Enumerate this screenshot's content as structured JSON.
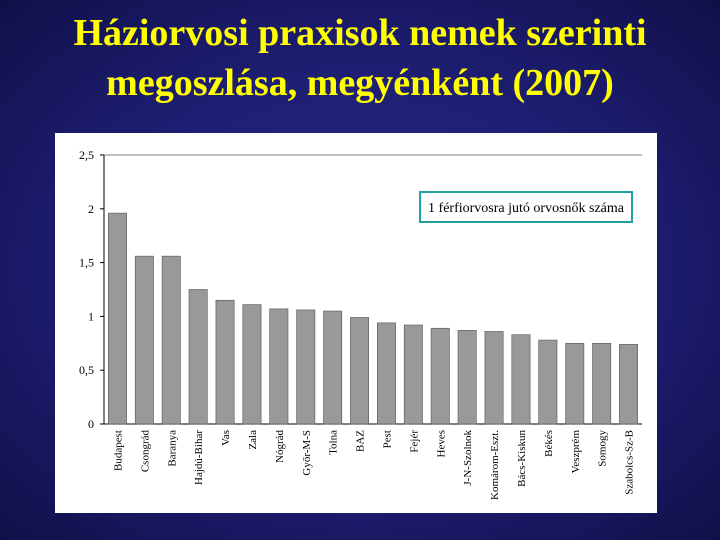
{
  "chart_data": {
    "type": "bar",
    "title": "Háziorvosi praxisok nemek szerinti megoszlása, megyénként (2007)",
    "categories": [
      "Budapest",
      "Csongrád",
      "Baranya",
      "Hajdú-Bihar",
      "Vas",
      "Zala",
      "Nógrád",
      "Győr-M-S",
      "Tolna",
      "BAZ",
      "Pest",
      "Fejér",
      "Heves",
      "J-N-Szolnok",
      "Komárom-Eszt.",
      "Bács-Kiskun",
      "Békés",
      "Veszprém",
      "Somogy",
      "Szabolcs-Sz-B"
    ],
    "series": [
      {
        "name": "1 férfiorvosra jutó orvosnők száma",
        "color": "#999999",
        "values": [
          1.96,
          1.56,
          1.56,
          1.25,
          1.15,
          1.11,
          1.07,
          1.06,
          1.05,
          0.99,
          0.94,
          0.92,
          0.89,
          0.87,
          0.86,
          0.83,
          0.78,
          0.75,
          0.75,
          0.74
        ]
      }
    ],
    "ylim": [
      0,
      2.5
    ],
    "yticks": [
      0,
      {
        "value": 0.5,
        "label": "0,5"
      },
      1,
      {
        "value": 1.5,
        "label": "1,5"
      },
      2,
      {
        "value": 2.5,
        "label": "2,5"
      }
    ],
    "legend": "top-right"
  }
}
